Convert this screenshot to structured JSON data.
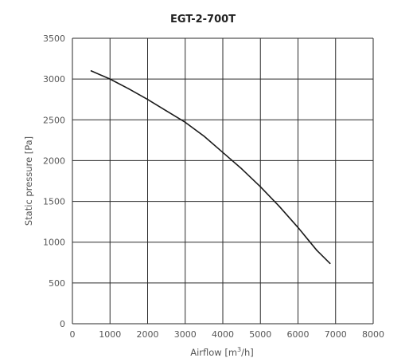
{
  "chart_data": {
    "type": "line",
    "title": "EGT-2-700T",
    "xlabel_prefix": "Airflow [m",
    "xlabel_sup": "3",
    "xlabel_suffix": "/h]",
    "ylabel": "Static pressure [Pa]",
    "xlim": [
      0,
      8000
    ],
    "ylim": [
      0,
      3500
    ],
    "xticks": [
      0,
      1000,
      2000,
      3000,
      4000,
      5000,
      6000,
      7000,
      8000
    ],
    "yticks": [
      0,
      500,
      1000,
      1500,
      2000,
      2500,
      3000,
      3500
    ],
    "grid": true,
    "legend": "none",
    "series": [
      {
        "color": "#1a1a1a",
        "x": [
          500,
          1000,
          1500,
          2000,
          2500,
          3000,
          3500,
          4000,
          4500,
          5000,
          5500,
          6000,
          6500,
          6850
        ],
        "y": [
          3100,
          3000,
          2880,
          2750,
          2610,
          2470,
          2300,
          2100,
          1900,
          1680,
          1440,
          1180,
          900,
          740
        ]
      }
    ]
  }
}
